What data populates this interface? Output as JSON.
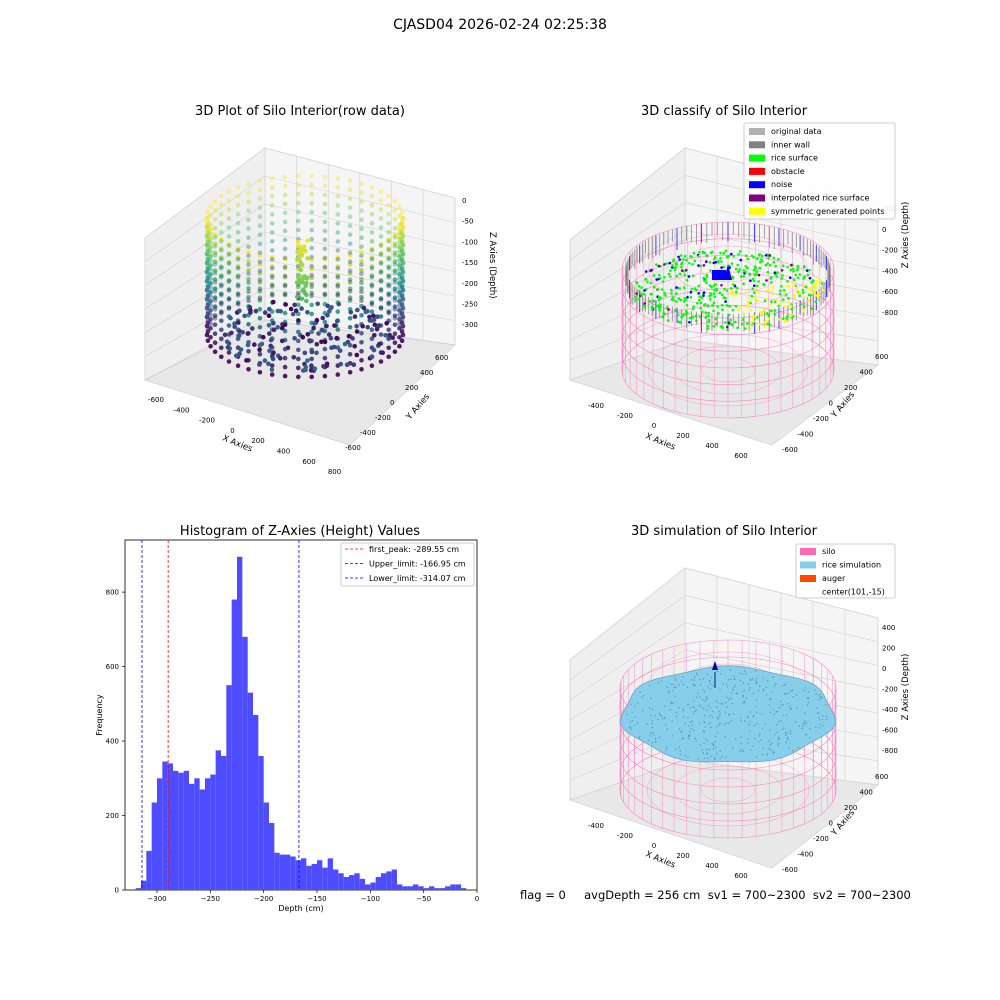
{
  "suptitle": "CJASD04 2026-02-24 02:25:38",
  "panels": {
    "raw": {
      "title": "3D Plot of Silo Interior(row data)",
      "xlabel": "X Axies",
      "ylabel": "Y Axies",
      "zlabel": "Z Axies (Depth)",
      "xticks": [
        "-600",
        "-400",
        "-200",
        "0",
        "200",
        "400",
        "600",
        "800"
      ],
      "yticks": [
        "-600",
        "-400",
        "-200",
        "0",
        "200",
        "400",
        "600"
      ],
      "zticks": [
        "0",
        "-50",
        "-100",
        "-150",
        "-200",
        "-250",
        "-300"
      ]
    },
    "classify": {
      "title": "3D classify of Silo Interior",
      "xlabel": "X Axies",
      "ylabel": "Y Axies",
      "zlabel": "Z Axies (Depth)",
      "xticks": [
        "-400",
        "-200",
        "0",
        "200",
        "400",
        "600"
      ],
      "yticks": [
        "-600",
        "-400",
        "-200",
        "0",
        "200",
        "400",
        "600"
      ],
      "zticks": [
        "200",
        "0",
        "-200",
        "-400",
        "-600",
        "-800"
      ],
      "legend": [
        {
          "label": "original data",
          "color": "#b0b0b0"
        },
        {
          "label": "inner wall",
          "color": "#808080"
        },
        {
          "label": "rice surface",
          "color": "#00ff00"
        },
        {
          "label": "obstacle",
          "color": "#ff0000"
        },
        {
          "label": "noise",
          "color": "#0000ff"
        },
        {
          "label": "interpolated rice surface",
          "color": "#800080"
        },
        {
          "label": "symmetric generated points",
          "color": "#ffff00"
        }
      ]
    },
    "histogram": {
      "title": "Histogram of Z-Axies (Height) Values",
      "xlabel": "Depth (cm)",
      "ylabel": "Frequency",
      "legend": [
        {
          "label": "first_peak: -289.55 cm",
          "color": "#ff0000"
        },
        {
          "label": "Upper_limit: -166.95 cm",
          "color": "#0000ff"
        },
        {
          "label": "Lower_limit: -314.07 cm",
          "color": "#0000ff"
        }
      ]
    },
    "simulation": {
      "title": "3D simulation of Silo Interior",
      "xlabel": "X Axies",
      "ylabel": "Y Axies",
      "zlabel": "Z Axies (Depth)",
      "xticks": [
        "-400",
        "-200",
        "0",
        "200",
        "400",
        "600"
      ],
      "yticks": [
        "-600",
        "-400",
        "-200",
        "0",
        "200",
        "400",
        "600"
      ],
      "zticks": [
        "400",
        "200",
        "0",
        "-200",
        "-400",
        "-600",
        "-800"
      ],
      "legend": [
        {
          "label": "silo",
          "color": "#ff69b4"
        },
        {
          "label": "rice simulation",
          "color": "#87ceeb"
        },
        {
          "label": "auger",
          "color": "#ff4500"
        },
        {
          "label": "center(101,-15)",
          "color": ""
        }
      ]
    }
  },
  "footer": "flag = 0     avgDepth = 256 cm  sv1 = 700~2300  sv2 = 700~2300",
  "chart_data": {
    "type": "bar",
    "bins_start": [
      -320,
      -315,
      -310,
      -305,
      -300,
      -295,
      -290,
      -285,
      -280,
      -275,
      -270,
      -265,
      -260,
      -255,
      -250,
      -245,
      -240,
      -235,
      -230,
      -225,
      -220,
      -215,
      -210,
      -205,
      -200,
      -195,
      -190,
      -185,
      -180,
      -175,
      -170,
      -165,
      -160,
      -155,
      -150,
      -145,
      -140,
      -135,
      -130,
      -125,
      -120,
      -115,
      -110,
      -105,
      -100,
      -95,
      -90,
      -85,
      -80,
      -75,
      -70,
      -65,
      -60,
      -55,
      -50,
      -45,
      -40,
      -35,
      -30,
      -25,
      -20,
      -15
    ],
    "bin_width": 5,
    "values": [
      5,
      25,
      105,
      235,
      300,
      345,
      340,
      320,
      315,
      320,
      285,
      300,
      270,
      300,
      310,
      375,
      360,
      550,
      780,
      895,
      680,
      530,
      470,
      360,
      235,
      180,
      100,
      95,
      95,
      90,
      80,
      85,
      65,
      70,
      80,
      60,
      85,
      55,
      45,
      35,
      40,
      45,
      30,
      15,
      20,
      35,
      45,
      50,
      55,
      15,
      10,
      10,
      15,
      10,
      5,
      10,
      5,
      5,
      10,
      15,
      15,
      5
    ],
    "xlim": [
      -330,
      0
    ],
    "ylim": [
      0,
      940
    ],
    "xticks": [
      -300,
      -250,
      -200,
      -150,
      -100,
      -50,
      0
    ],
    "yticks": [
      0,
      200,
      400,
      600,
      800
    ],
    "vlines": [
      {
        "x": -289.55,
        "color": "#ff0000"
      },
      {
        "x": -166.95,
        "color": "#0000ff"
      },
      {
        "x": -314.07,
        "color": "#0000ff"
      }
    ],
    "bar_color": "#4d4dff",
    "legend_position": "upper right",
    "xlabel": "Depth (cm)",
    "ylabel": "Frequency",
    "title": "Histogram of Z-Axies (Height) Values"
  }
}
